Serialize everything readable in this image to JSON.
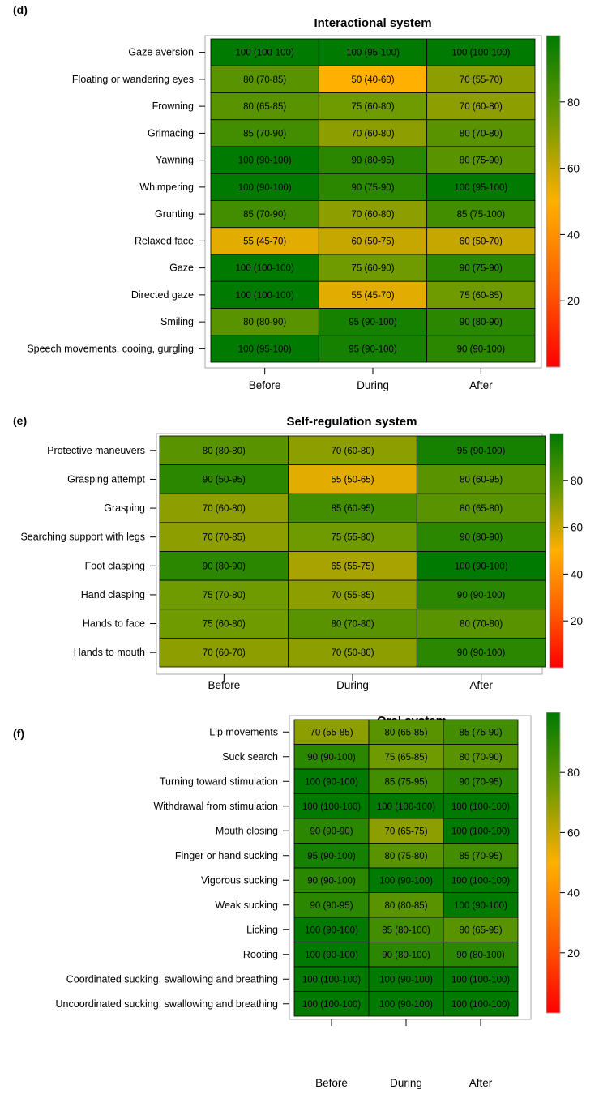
{
  "chart_data": [
    {
      "type": "heatmap",
      "panel_label": "(d)",
      "title": "Interactional system",
      "xlabel": "",
      "ylabel": "",
      "categories": [
        "Before",
        "During",
        "After"
      ],
      "rows": [
        "Gaze aversion",
        "Floating or wandering eyes",
        "Frowning",
        "Grimacing",
        "Yawning",
        "Whimpering",
        "Grunting",
        "Relaxed face",
        "Gaze",
        "Directed gaze",
        "Smiling",
        "Speech movements, cooing, gurgling"
      ],
      "values": [
        [
          100,
          100,
          100
        ],
        [
          80,
          50,
          70
        ],
        [
          80,
          75,
          70
        ],
        [
          85,
          70,
          80
        ],
        [
          100,
          90,
          80
        ],
        [
          100,
          90,
          100
        ],
        [
          85,
          70,
          85
        ],
        [
          55,
          60,
          60
        ],
        [
          100,
          75,
          90
        ],
        [
          100,
          55,
          75
        ],
        [
          80,
          95,
          90
        ],
        [
          100,
          95,
          90
        ]
      ],
      "labels": [
        [
          "100 (100-100)",
          "100 (95-100)",
          "100 (100-100)"
        ],
        [
          "80 (70-85)",
          "50 (40-60)",
          "70 (55-70)"
        ],
        [
          "80 (65-85)",
          "75 (60-80)",
          "70 (60-80)"
        ],
        [
          "85 (70-90)",
          "70 (60-80)",
          "80 (70-80)"
        ],
        [
          "100 (90-100)",
          "90 (80-95)",
          "80 (75-90)"
        ],
        [
          "100 (90-100)",
          "90 (75-90)",
          "100 (95-100)"
        ],
        [
          "85 (70-90)",
          "70 (60-80)",
          "85 (75-100)"
        ],
        [
          "55 (45-70)",
          "60 (50-75)",
          "60 (50-70)"
        ],
        [
          "100 (100-100)",
          "75 (60-90)",
          "90 (75-90)"
        ],
        [
          "100 (100-100)",
          "55 (45-70)",
          "75 (60-85)"
        ],
        [
          "80 (80-90)",
          "95 (90-100)",
          "90 (80-90)"
        ],
        [
          "100 (95-100)",
          "95 (90-100)",
          "90 (90-100)"
        ]
      ],
      "colorbar_ticks": [
        "20",
        "40",
        "60",
        "80"
      ],
      "color_range": [
        0,
        100
      ]
    },
    {
      "type": "heatmap",
      "panel_label": "(e)",
      "title": "Self-regulation system",
      "xlabel": "",
      "ylabel": "",
      "categories": [
        "Before",
        "During",
        "After"
      ],
      "rows": [
        "Protective maneuvers",
        "Grasping attempt",
        "Grasping",
        "Searching support with legs",
        "Foot clasping",
        "Hand clasping",
        "Hands to face",
        "Hands to mouth"
      ],
      "values": [
        [
          80,
          70,
          95
        ],
        [
          90,
          55,
          80
        ],
        [
          70,
          85,
          80
        ],
        [
          70,
          75,
          90
        ],
        [
          90,
          65,
          100
        ],
        [
          75,
          70,
          90
        ],
        [
          75,
          80,
          80
        ],
        [
          70,
          70,
          90
        ]
      ],
      "labels": [
        [
          "80 (80-80)",
          "70 (60-80)",
          "95 (90-100)"
        ],
        [
          "90 (50-95)",
          "55 (50-65)",
          "80 (60-95)"
        ],
        [
          "70 (60-80)",
          "85 (60-95)",
          "80 (65-80)"
        ],
        [
          "70 (70-85)",
          "75 (55-80)",
          "90 (80-90)"
        ],
        [
          "90 (80-90)",
          "65 (55-75)",
          "100 (90-100)"
        ],
        [
          "75 (70-80)",
          "70 (55-85)",
          "90 (90-100)"
        ],
        [
          "75 (60-80)",
          "80 (70-80)",
          "80 (70-80)"
        ],
        [
          "70 (60-70)",
          "70 (50-80)",
          "90 (90-100)"
        ]
      ],
      "colorbar_ticks": [
        "20",
        "40",
        "60",
        "80"
      ],
      "color_range": [
        0,
        100
      ]
    },
    {
      "type": "heatmap",
      "panel_label": "(f)",
      "title": "Oral system",
      "xlabel": "",
      "ylabel": "",
      "categories": [
        "Before",
        "During",
        "After"
      ],
      "rows": [
        "Lip movements",
        "Suck search",
        "Turning toward stimulation",
        "Withdrawal from stimulation",
        "Mouth closing",
        "Finger or hand sucking",
        "Vigorous sucking",
        "Weak sucking",
        "Licking",
        "Rooting",
        "Coordinated sucking, swallowing and breathing",
        "Uncoordinated sucking, swallowing and breathing"
      ],
      "values": [
        [
          70,
          80,
          85
        ],
        [
          90,
          75,
          80
        ],
        [
          100,
          85,
          90
        ],
        [
          100,
          100,
          100
        ],
        [
          90,
          70,
          100
        ],
        [
          95,
          80,
          85
        ],
        [
          90,
          100,
          100
        ],
        [
          90,
          80,
          100
        ],
        [
          100,
          85,
          80
        ],
        [
          100,
          90,
          90
        ],
        [
          100,
          100,
          100
        ],
        [
          100,
          100,
          100
        ]
      ],
      "labels": [
        [
          "70 (55-85)",
          "80 (65-85)",
          "85 (75-90)"
        ],
        [
          "90 (90-100)",
          "75 (65-85)",
          "80 (70-90)"
        ],
        [
          "100 (90-100)",
          "85 (75-95)",
          "90 (70-95)"
        ],
        [
          "100 (100-100)",
          "100 (100-100)",
          "100 (100-100)"
        ],
        [
          "90 (90-90)",
          "70 (65-75)",
          "100 (100-100)"
        ],
        [
          "95 (90-100)",
          "80 (75-80)",
          "85 (70-95)"
        ],
        [
          "90 (90-100)",
          "100 (90-100)",
          "100 (100-100)"
        ],
        [
          "90 (90-95)",
          "80 (80-85)",
          "100 (90-100)"
        ],
        [
          "100 (90-100)",
          "85 (80-100)",
          "80 (65-95)"
        ],
        [
          "100 (90-100)",
          "90 (80-100)",
          "90 (80-100)"
        ],
        [
          "100 (100-100)",
          "100 (90-100)",
          "100 (100-100)"
        ],
        [
          "100 (100-100)",
          "100 (90-100)",
          "100 (100-100)"
        ]
      ],
      "colorbar_ticks": [
        "20",
        "40",
        "60",
        "80"
      ],
      "color_range": [
        0,
        100
      ]
    }
  ],
  "colors": {
    "low": "#ff0000",
    "mid": "#ffb000",
    "high": "#007a00",
    "cell_border": "#000000",
    "frame": "#a8a8a8"
  }
}
